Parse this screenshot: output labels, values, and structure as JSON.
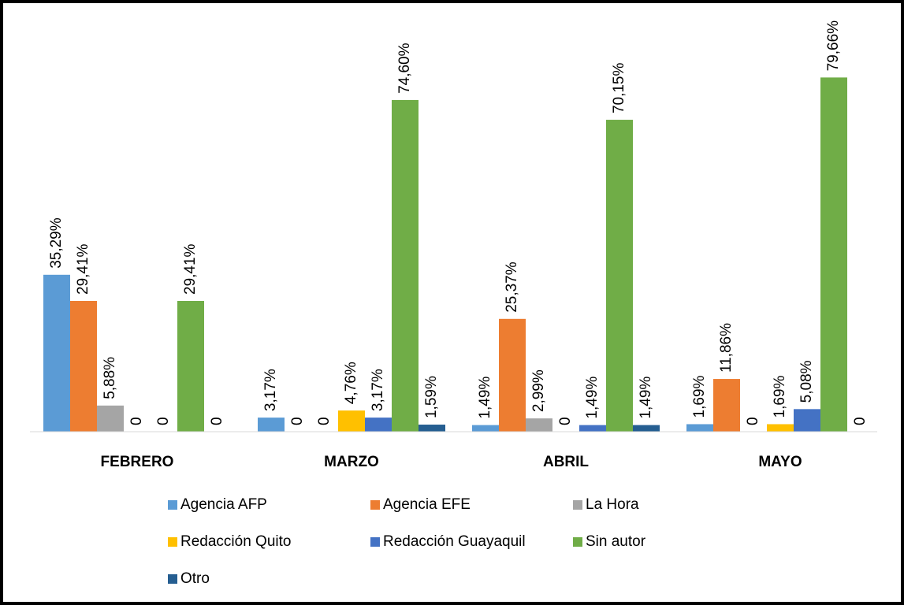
{
  "chart_data": {
    "type": "bar",
    "categories": [
      "FEBRERO",
      "MARZO",
      "ABRIL",
      "MAYO"
    ],
    "ylim": [
      0,
      90
    ],
    "legend": "bottom",
    "series": [
      {
        "name": "Agencia AFP",
        "color": "#5b9bd5",
        "values": [
          35.29,
          3.17,
          1.49,
          1.69
        ],
        "value_labels": [
          "35,29%",
          "3,17%",
          "1,49%",
          "1,69%"
        ]
      },
      {
        "name": "Agencia EFE",
        "color": "#ed7d31",
        "values": [
          29.41,
          0,
          25.37,
          11.86
        ],
        "value_labels": [
          "29,41%",
          "0",
          "25,37%",
          "11,86%"
        ]
      },
      {
        "name": "La Hora",
        "color": "#a5a5a5",
        "values": [
          5.88,
          0,
          2.99,
          0
        ],
        "value_labels": [
          "5,88%",
          "0",
          "2,99%",
          "0"
        ]
      },
      {
        "name": "Redacción Quito",
        "color": "#ffc000",
        "values": [
          0,
          4.76,
          0,
          1.69
        ],
        "value_labels": [
          "0",
          "4,76%",
          "0",
          "1,69%"
        ]
      },
      {
        "name": "Redacción Guayaquil",
        "color": "#4472c4",
        "values": [
          0,
          3.17,
          1.49,
          5.08
        ],
        "value_labels": [
          "0",
          "3,17%",
          "1,49%",
          "5,08%"
        ]
      },
      {
        "name": "Sin autor",
        "color": "#70ad47",
        "values": [
          29.41,
          74.6,
          70.15,
          79.66
        ],
        "value_labels": [
          "29,41%",
          "74,60%",
          "70,15%",
          "79,66%"
        ]
      },
      {
        "name": "Otro",
        "color": "#255e91",
        "values": [
          0,
          1.59,
          1.49,
          0
        ],
        "value_labels": [
          "0",
          "1,59%",
          "1,49%",
          "0"
        ]
      }
    ]
  }
}
